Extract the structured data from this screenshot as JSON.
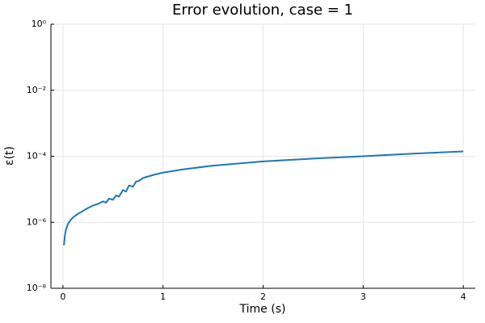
{
  "chart_data": {
    "type": "line",
    "title": "Error evolution, case = 1",
    "x_label": "Time (s)",
    "y_label": "ε(t)",
    "x": [
      0.01,
      0.02,
      0.03,
      0.05,
      0.08,
      0.1,
      0.15,
      0.2,
      0.25,
      0.3,
      0.35,
      0.4,
      0.43,
      0.46,
      0.5,
      0.53,
      0.56,
      0.6,
      0.63,
      0.66,
      0.7,
      0.73,
      0.76,
      0.8,
      0.9,
      1.0,
      1.2,
      1.5,
      2.0,
      2.5,
      3.0,
      3.5,
      4.0
    ],
    "series": [
      {
        "color": "#1f77b4",
        "values": [
          2e-07,
          4e-07,
          6e-07,
          9e-07,
          1.2e-06,
          1.4e-06,
          1.8e-06,
          2.2e-06,
          2.7e-06,
          3.2e-06,
          3.6e-06,
          4.3e-06,
          3.9e-06,
          5.2e-06,
          4.8e-06,
          6.5e-06,
          6e-06,
          9.5e-06,
          8.5e-06,
          1.3e-05,
          1.2e-05,
          1.7e-05,
          1.8e-05,
          2.2e-05,
          2.7e-05,
          3.2e-05,
          4e-05,
          5.2e-05,
          7e-05,
          8.5e-05,
          0.0001,
          0.00012,
          0.00014
        ]
      }
    ],
    "xlim": [
      -0.12,
      4.12
    ],
    "xticks": [
      0,
      1,
      2,
      3,
      4
    ],
    "ylim": [
      1e-08,
      1
    ],
    "yscale": "log",
    "yticks": [
      {
        "value": 1e-08,
        "label": "10⁻⁸"
      },
      {
        "value": 1e-06,
        "label": "10⁻⁶"
      },
      {
        "value": 0.0001,
        "label": "10⁻⁴"
      },
      {
        "value": 0.01,
        "label": "10⁻²"
      },
      {
        "value": 1,
        "label": "10⁰"
      }
    ],
    "grid": true
  }
}
